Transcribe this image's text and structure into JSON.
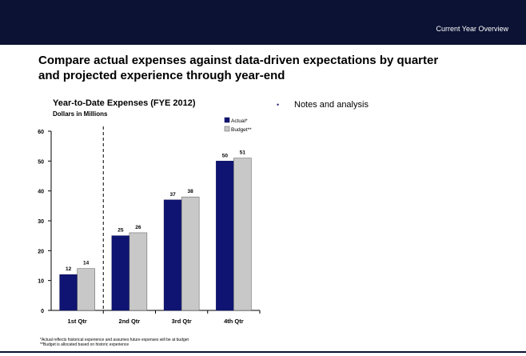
{
  "header": {
    "title": "Current Year Overview"
  },
  "headline": {
    "line1": "Compare actual expenses against data-driven expectations by quarter",
    "line2": "and projected experience through year-end"
  },
  "notes": {
    "bullet": "•",
    "text": "Notes and analysis"
  },
  "footnotes": {
    "line1": "*Actual reflects historical experience and assumes future expenses will be at budget",
    "line2": "**Budget is allocated based on historic experience"
  },
  "colors": {
    "header_bg": "#0b1233",
    "actual": "#0f1372",
    "budget": "#c8c8c8"
  },
  "chart_data": {
    "type": "bar",
    "title": "Year-to-Date Expenses (FYE 2012)",
    "subtitle": "Dollars in Millions",
    "categories": [
      "1st Qtr",
      "2nd Qtr",
      "3rd Qtr",
      "4th Qtr"
    ],
    "series": [
      {
        "name": "Actual*",
        "values": [
          12,
          25,
          37,
          50
        ],
        "labels": [
          "12",
          "25",
          "37",
          "50"
        ]
      },
      {
        "name": "Budget**",
        "values": [
          14,
          26,
          38,
          51
        ],
        "labels": [
          "14",
          "26",
          "38",
          "51"
        ]
      }
    ],
    "ylim": [
      0,
      60
    ],
    "yticks": [
      "0",
      "10",
      "20",
      "30",
      "40",
      "50",
      "60"
    ],
    "grid": false,
    "legend": "top-right",
    "divider_after_category": "1st Qtr"
  }
}
